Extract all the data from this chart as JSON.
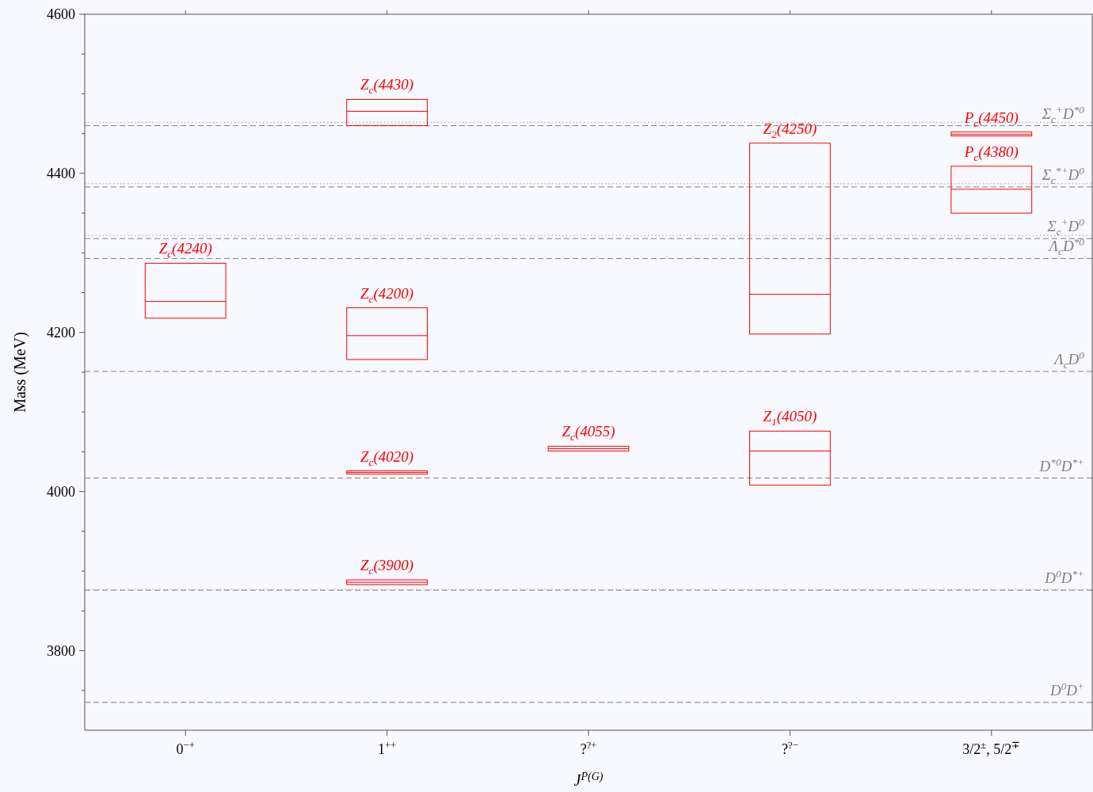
{
  "chart_data": {
    "type": "box",
    "xlabel": "J$^{P(G)}$",
    "ylabel": "Mass (MeV)",
    "categories": [
      "0$^{−+}$",
      "1$^{++}$",
      "?$^{?+}$",
      "?$^{?−}$",
      "3/2$^{±}$, 5/2$^{∓}$"
    ],
    "ylim": [
      3700,
      4600
    ],
    "yticks": [
      {
        "value": 3750,
        "label": null
      },
      3800,
      {
        "value": 3850,
        "label": null
      },
      {
        "value": 3900,
        "label": null
      },
      {
        "value": 3950,
        "label": null
      },
      4000,
      {
        "value": 4050,
        "label": null
      },
      {
        "value": 4100,
        "label": null
      },
      {
        "value": 4150,
        "label": null
      },
      4200,
      {
        "value": 4250,
        "label": null
      },
      {
        "value": 4300,
        "label": null
      },
      {
        "value": 4350,
        "label": null
      },
      4400,
      {
        "value": 4450,
        "label": null
      },
      {
        "value": 4500,
        "label": null
      },
      {
        "value": 4550,
        "label": null
      },
      4600
    ],
    "grid": false,
    "series": [
      {
        "color": "#ff0000",
        "boxes": [
          {
            "low": 4218,
            "q1": 4218,
            "median": 4239,
            "q3": 4287,
            "high": 4287
          },
          {
            "low": 4460,
            "q1": 4460,
            "median": 4478,
            "q3": 4493,
            "high": 4493
          },
          {
            "low": 4051,
            "q1": 4051,
            "median": 4054,
            "q3": 4057,
            "high": 4057
          },
          {
            "low": 4198,
            "q1": 4198,
            "median": 4248,
            "q3": 4438,
            "high": 4438
          },
          {
            "low": 4447,
            "q1": 4447,
            "median": 4449,
            "q3": 4452,
            "high": 4452
          }
        ]
      },
      {
        "color": "#ff0000",
        "boxes": [
          null,
          {
            "low": 4166,
            "q1": 4166,
            "median": 4196,
            "q3": 4231,
            "high": 4231
          },
          null,
          {
            "low": 4008,
            "q1": 4008,
            "median": 4051,
            "q3": 4076,
            "high": 4076
          },
          {
            "low": 4350,
            "q1": 4350,
            "median": 4380,
            "q3": 4409,
            "high": 4409
          }
        ]
      },
      {
        "color": "#ff0000",
        "boxes": [
          null,
          {
            "low": 4022,
            "q1": 4022,
            "median": 4024,
            "q3": 4026,
            "high": 4026
          },
          null,
          null,
          null
        ]
      },
      {
        "color": "#ff0000",
        "boxes": [
          null,
          {
            "low": 3883,
            "q1": 3883,
            "median": 3886,
            "q3": 3889,
            "high": 3889
          },
          null,
          null,
          null
        ]
      }
    ],
    "annotations": [
      {
        "text": "Z$_{c}$(4240)",
        "x": "0$^{−+}$",
        "y": 4287
      },
      {
        "text": "Z$_{c}$(4430)",
        "x": "1$^{++}$",
        "y": 4493
      },
      {
        "text": "Z$_{c}$(4200)",
        "x": "1$^{++}$",
        "y": 4231
      },
      {
        "text": "Z$_{c}$(4020)",
        "x": "1$^{++}$",
        "y": 4026
      },
      {
        "text": "Z$_{c}$(3900)",
        "x": "1$^{++}$",
        "y": 3889
      },
      {
        "text": "Z$_{c}$(4055)",
        "x": "?$^{?+}$",
        "y": 4057
      },
      {
        "text": "Z$_{2}$(4250)",
        "x": "?$^{?−}$",
        "y": 4438
      },
      {
        "text": "Z$_{1}$(4050)",
        "x": "?$^{?−}$",
        "y": 4076
      },
      {
        "text": "P$_{c}$(4450)",
        "x": "3/2$^{±}$, 5/2$^{∓}$",
        "y": 4452
      },
      {
        "text": "P$_{c}$(4380)",
        "x": "3/2$^{±}$, 5/2$^{∓}$",
        "y": 4409
      }
    ],
    "ref_lines": [
      {
        "axis": "y",
        "value": 3735,
        "label": "D$^{0}$D$^{+}$",
        "color": "#808080",
        "line_style": "dashed"
      },
      {
        "axis": "y",
        "value": 3876,
        "label": "D$^{0}$D$^{*+}$",
        "color": "#808080",
        "line_style": "dashed"
      },
      {
        "axis": "y",
        "value": 3877,
        "color": "#a0a0a0",
        "line_style": "dotted"
      },
      {
        "axis": "y",
        "value": 4017,
        "label": "D$^{*0}$D$^{*+}$",
        "color": "#808080",
        "line_style": "dashed"
      },
      {
        "axis": "y",
        "value": 4151,
        "label": "Λ$_{c}$D$^{0}$",
        "color": "#808080",
        "line_style": "dashed"
      },
      {
        "axis": "y",
        "value": 4293,
        "label": "Λ$_{c}$D$^{*0}$",
        "color": "#808080",
        "line_style": "dashed"
      },
      {
        "axis": "y",
        "value": 4318,
        "label": "Σ$_{c}$$^{+}$D$^{0}$",
        "color": "#808080",
        "line_style": "dashed"
      },
      {
        "axis": "y",
        "value": 4322,
        "color": "#a0a0a0",
        "line_style": "dotted"
      },
      {
        "axis": "y",
        "value": 4383,
        "label": "Σ$_{c}$$^{*+}$D$^{0}$",
        "color": "#808080",
        "line_style": "dashed"
      },
      {
        "axis": "y",
        "value": 4387,
        "color": "#a0a0a0",
        "line_style": "dotted"
      },
      {
        "axis": "y",
        "value": 4460,
        "label": "Σ$_{c}$$^{+}$D$^{*0}$",
        "color": "#808080",
        "line_style": "dashed"
      },
      {
        "axis": "y",
        "value": 4464,
        "color": "#a0a0a0",
        "line_style": "dotted"
      }
    ]
  }
}
